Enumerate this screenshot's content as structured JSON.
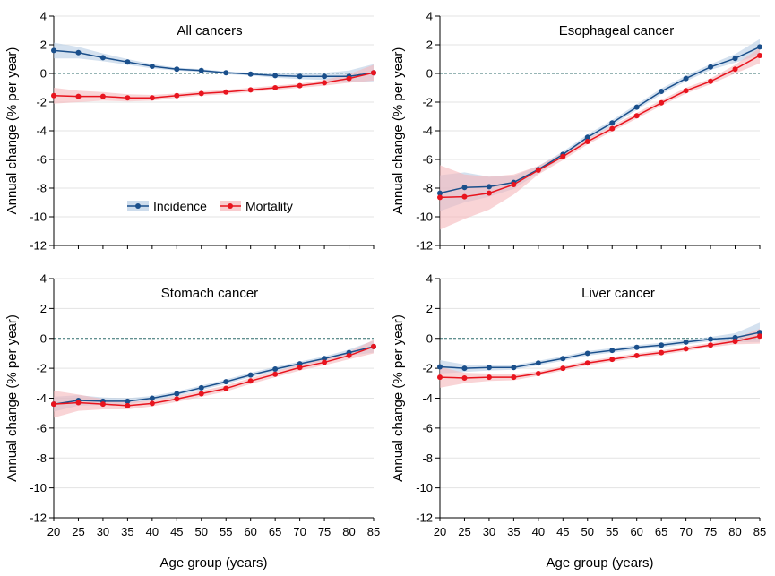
{
  "figure": {
    "background": "#ffffff"
  },
  "style": {
    "incidence_color": "#1a4f8b",
    "incidence_band": "#b8cde4",
    "mortality_color": "#e8141e",
    "mortality_band": "#f5b8bb",
    "grid_color": "#e3e3e3",
    "zero_line_color": "#2f6b6b"
  },
  "legend": {
    "items": [
      "Incidence",
      "Mortality"
    ],
    "location": "lower-middle of first panel"
  },
  "chart_data": [
    {
      "type": "line",
      "title": "All cancers",
      "xlabel": "",
      "ylabel": "Annual change (% per year)",
      "x": [
        20,
        25,
        30,
        35,
        40,
        45,
        50,
        55,
        60,
        65,
        70,
        75,
        80,
        85
      ],
      "xlim": [
        20,
        85
      ],
      "ylim": [
        -12,
        4
      ],
      "yticks": [
        4,
        2,
        0,
        -2,
        -4,
        -6,
        -8,
        -10,
        -12
      ],
      "xticks": [],
      "series": [
        {
          "name": "Incidence",
          "values": [
            1.6,
            1.45,
            1.1,
            0.8,
            0.5,
            0.3,
            0.2,
            0.05,
            -0.05,
            -0.15,
            -0.2,
            -0.2,
            -0.2,
            0.05
          ],
          "lower": [
            1.05,
            1.05,
            0.85,
            0.6,
            0.35,
            0.2,
            0.1,
            -0.05,
            -0.15,
            -0.3,
            -0.4,
            -0.45,
            -0.6,
            -0.55
          ],
          "upper": [
            2.15,
            1.85,
            1.4,
            1.0,
            0.65,
            0.4,
            0.3,
            0.15,
            0.05,
            0.0,
            0.0,
            0.05,
            0.2,
            0.65
          ]
        },
        {
          "name": "Mortality",
          "values": [
            -1.55,
            -1.6,
            -1.6,
            -1.7,
            -1.7,
            -1.55,
            -1.4,
            -1.3,
            -1.15,
            -1.0,
            -0.85,
            -0.65,
            -0.35,
            0.05
          ],
          "lower": [
            -2.1,
            -2.0,
            -1.9,
            -1.95,
            -1.9,
            -1.7,
            -1.55,
            -1.45,
            -1.3,
            -1.15,
            -1.0,
            -0.85,
            -0.65,
            -0.5
          ],
          "upper": [
            -1.0,
            -1.2,
            -1.3,
            -1.45,
            -1.5,
            -1.4,
            -1.25,
            -1.15,
            -1.0,
            -0.85,
            -0.7,
            -0.45,
            -0.05,
            0.6
          ]
        }
      ]
    },
    {
      "type": "line",
      "title": "Esophageal cancer",
      "xlabel": "",
      "ylabel": "Annual change (% per year)",
      "x": [
        20,
        25,
        30,
        35,
        40,
        45,
        50,
        55,
        60,
        65,
        70,
        75,
        80,
        85
      ],
      "xlim": [
        20,
        85
      ],
      "ylim": [
        -12,
        4
      ],
      "yticks": [
        4,
        2,
        0,
        -2,
        -4,
        -6,
        -8,
        -10,
        -12
      ],
      "xticks": [],
      "series": [
        {
          "name": "Incidence",
          "values": [
            -8.35,
            -7.95,
            -7.9,
            -7.6,
            -6.7,
            -5.65,
            -4.45,
            -3.45,
            -2.35,
            -1.25,
            -0.35,
            0.45,
            1.05,
            1.85
          ],
          "lower": [
            -9.6,
            -9.0,
            -8.6,
            -8.05,
            -6.95,
            -5.85,
            -4.65,
            -3.65,
            -2.55,
            -1.45,
            -0.55,
            0.25,
            0.75,
            1.3
          ],
          "upper": [
            -7.1,
            -6.9,
            -7.2,
            -7.15,
            -6.45,
            -5.45,
            -4.25,
            -3.25,
            -2.15,
            -1.05,
            -0.15,
            0.65,
            1.35,
            2.4
          ]
        },
        {
          "name": "Mortality",
          "values": [
            -8.65,
            -8.6,
            -8.35,
            -7.75,
            -6.75,
            -5.8,
            -4.75,
            -3.85,
            -2.95,
            -2.05,
            -1.2,
            -0.55,
            0.3,
            1.25
          ],
          "lower": [
            -10.9,
            -10.15,
            -9.5,
            -8.45,
            -7.05,
            -6.05,
            -4.95,
            -4.05,
            -3.15,
            -2.25,
            -1.4,
            -0.75,
            0.0,
            0.7
          ],
          "upper": [
            -6.4,
            -7.05,
            -7.2,
            -7.05,
            -6.45,
            -5.55,
            -4.55,
            -3.65,
            -2.75,
            -1.85,
            -1.0,
            -0.35,
            0.6,
            1.8
          ]
        }
      ]
    },
    {
      "type": "line",
      "title": "Stomach cancer",
      "xlabel": "Age group (years)",
      "ylabel": "Annual change (% per year)",
      "x": [
        20,
        25,
        30,
        35,
        40,
        45,
        50,
        55,
        60,
        65,
        70,
        75,
        80,
        85
      ],
      "xlim": [
        20,
        85
      ],
      "ylim": [
        -12,
        4
      ],
      "yticks": [
        4,
        2,
        0,
        -2,
        -4,
        -6,
        -8,
        -10,
        -12
      ],
      "xticks": [
        20,
        25,
        30,
        35,
        40,
        45,
        50,
        55,
        60,
        65,
        70,
        75,
        80,
        85
      ],
      "series": [
        {
          "name": "Incidence",
          "values": [
            -4.4,
            -4.15,
            -4.2,
            -4.2,
            -4.0,
            -3.7,
            -3.3,
            -2.9,
            -2.45,
            -2.05,
            -1.7,
            -1.35,
            -0.95,
            -0.55
          ],
          "lower": [
            -4.9,
            -4.5,
            -4.45,
            -4.4,
            -4.15,
            -3.85,
            -3.45,
            -3.05,
            -2.6,
            -2.2,
            -1.85,
            -1.5,
            -1.15,
            -0.95
          ],
          "upper": [
            -3.9,
            -3.8,
            -3.95,
            -4.0,
            -3.85,
            -3.55,
            -3.15,
            -2.75,
            -2.3,
            -1.9,
            -1.55,
            -1.2,
            -0.75,
            -0.15
          ]
        },
        {
          "name": "Mortality",
          "values": [
            -4.4,
            -4.3,
            -4.4,
            -4.5,
            -4.35,
            -4.05,
            -3.7,
            -3.35,
            -2.85,
            -2.4,
            -1.95,
            -1.6,
            -1.15,
            -0.55
          ],
          "lower": [
            -5.3,
            -4.85,
            -4.75,
            -4.75,
            -4.55,
            -4.25,
            -3.9,
            -3.55,
            -3.05,
            -2.6,
            -2.15,
            -1.8,
            -1.4,
            -1.0
          ],
          "upper": [
            -3.5,
            -3.75,
            -4.05,
            -4.25,
            -4.15,
            -3.85,
            -3.5,
            -3.15,
            -2.65,
            -2.2,
            -1.75,
            -1.4,
            -0.9,
            -0.1
          ]
        }
      ]
    },
    {
      "type": "line",
      "title": "Liver cancer",
      "xlabel": "Age group (years)",
      "ylabel": "Annual change (% per year)",
      "x": [
        20,
        25,
        30,
        35,
        40,
        45,
        50,
        55,
        60,
        65,
        70,
        75,
        80,
        85
      ],
      "xlim": [
        20,
        85
      ],
      "ylim": [
        -12,
        4
      ],
      "yticks": [
        4,
        2,
        0,
        -2,
        -4,
        -6,
        -8,
        -10,
        -12
      ],
      "xticks": [
        20,
        25,
        30,
        35,
        40,
        45,
        50,
        55,
        60,
        65,
        70,
        75,
        80,
        85
      ],
      "series": [
        {
          "name": "Incidence",
          "values": [
            -1.9,
            -2.0,
            -1.95,
            -1.95,
            -1.65,
            -1.35,
            -1.0,
            -0.8,
            -0.6,
            -0.45,
            -0.25,
            -0.05,
            0.05,
            0.4
          ],
          "lower": [
            -2.35,
            -2.25,
            -2.15,
            -2.1,
            -1.8,
            -1.5,
            -1.15,
            -0.95,
            -0.75,
            -0.6,
            -0.4,
            -0.2,
            -0.25,
            -0.25
          ],
          "upper": [
            -1.45,
            -1.75,
            -1.75,
            -1.8,
            -1.5,
            -1.2,
            -0.85,
            -0.65,
            -0.45,
            -0.3,
            -0.1,
            0.1,
            0.35,
            1.05
          ]
        },
        {
          "name": "Mortality",
          "values": [
            -2.6,
            -2.65,
            -2.6,
            -2.6,
            -2.35,
            -2.0,
            -1.65,
            -1.4,
            -1.15,
            -0.95,
            -0.7,
            -0.45,
            -0.2,
            0.15
          ],
          "lower": [
            -3.3,
            -3.0,
            -2.85,
            -2.8,
            -2.5,
            -2.15,
            -1.8,
            -1.55,
            -1.3,
            -1.1,
            -0.85,
            -0.6,
            -0.4,
            -0.35
          ],
          "upper": [
            -1.9,
            -2.3,
            -2.35,
            -2.4,
            -2.2,
            -1.85,
            -1.5,
            -1.25,
            -1.0,
            -0.8,
            -0.55,
            -0.3,
            0.0,
            0.65
          ]
        }
      ]
    }
  ]
}
